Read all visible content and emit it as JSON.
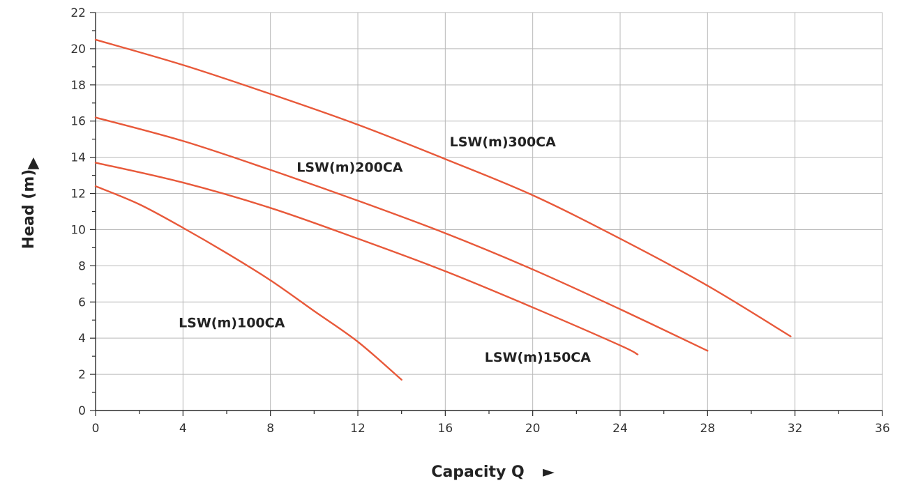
{
  "chart_data": {
    "type": "line",
    "title": "",
    "xlabel": "Capacity Q",
    "xlabel_arrow": "►",
    "ylabel": "Head (m)",
    "ylabel_arrow": "▲",
    "xlim": [
      0,
      36
    ],
    "ylim": [
      0,
      22
    ],
    "xticks": [
      0,
      4,
      8,
      12,
      16,
      20,
      24,
      28,
      32,
      36
    ],
    "yticks": [
      0,
      2,
      4,
      6,
      8,
      10,
      12,
      14,
      16,
      18,
      20,
      22
    ],
    "grid": true,
    "legend": "none",
    "line_color": "#e8593a",
    "series": [
      {
        "name": "LSW(m)100CA",
        "label_anchor": [
          3.8,
          4.6
        ],
        "x": [
          0,
          2,
          4,
          6,
          8,
          10,
          12,
          14
        ],
        "y": [
          12.4,
          11.4,
          10.1,
          8.7,
          7.2,
          5.5,
          3.8,
          1.7
        ]
      },
      {
        "name": "LSW(m)150CA",
        "label_anchor": [
          17.8,
          2.7
        ],
        "x": [
          0,
          4,
          8,
          12,
          16,
          20,
          24,
          24.8
        ],
        "y": [
          13.7,
          12.6,
          11.2,
          9.5,
          7.7,
          5.7,
          3.6,
          3.1
        ]
      },
      {
        "name": "LSW(m)200CA",
        "label_anchor": [
          9.2,
          13.2
        ],
        "x": [
          0,
          4,
          8,
          12,
          16,
          20,
          24,
          28
        ],
        "y": [
          16.2,
          14.9,
          13.3,
          11.6,
          9.8,
          7.8,
          5.6,
          3.3
        ]
      },
      {
        "name": "LSW(m)300CA",
        "label_anchor": [
          16.2,
          14.6
        ],
        "x": [
          0,
          4,
          8,
          12,
          16,
          20,
          24,
          28,
          31.8
        ],
        "y": [
          20.5,
          19.1,
          17.5,
          15.8,
          13.9,
          11.9,
          9.5,
          6.9,
          4.1
        ]
      }
    ]
  }
}
